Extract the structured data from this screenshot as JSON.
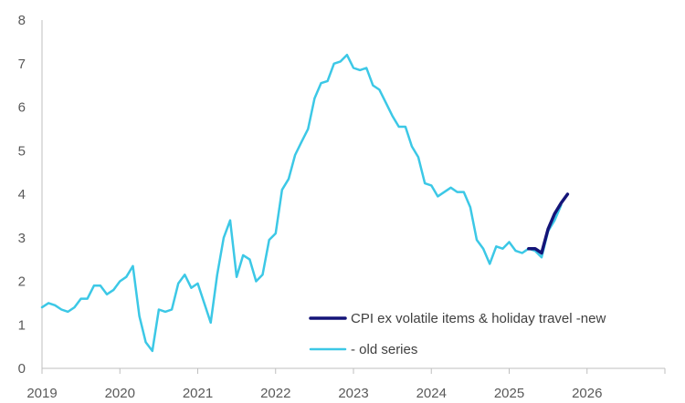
{
  "chart_data": {
    "type": "line",
    "title": "",
    "xlabel": "",
    "ylabel": "",
    "xlim": [
      2019,
      2027
    ],
    "ylim": [
      0,
      8
    ],
    "x_ticks": [
      "2019",
      "2020",
      "2021",
      "2022",
      "2023",
      "2024",
      "2025",
      "2026"
    ],
    "y_ticks": [
      "0",
      "1",
      "2",
      "3",
      "4",
      "5",
      "6",
      "7",
      "8"
    ],
    "grid": false,
    "legend_position": "bottom-center",
    "series": [
      {
        "name": "- old series",
        "color": "#3cc8e6",
        "x": [
          2019.0,
          2019.083,
          2019.167,
          2019.25,
          2019.333,
          2019.417,
          2019.5,
          2019.583,
          2019.667,
          2019.75,
          2019.833,
          2019.917,
          2020.0,
          2020.083,
          2020.167,
          2020.25,
          2020.333,
          2020.417,
          2020.5,
          2020.583,
          2020.667,
          2020.75,
          2020.833,
          2020.917,
          2021.0,
          2021.083,
          2021.167,
          2021.25,
          2021.333,
          2021.417,
          2021.5,
          2021.583,
          2021.667,
          2021.75,
          2021.833,
          2021.917,
          2022.0,
          2022.083,
          2022.167,
          2022.25,
          2022.333,
          2022.417,
          2022.5,
          2022.583,
          2022.667,
          2022.75,
          2022.833,
          2022.917,
          2023.0,
          2023.083,
          2023.167,
          2023.25,
          2023.333,
          2023.417,
          2023.5,
          2023.583,
          2023.667,
          2023.75,
          2023.833,
          2023.917,
          2024.0,
          2024.083,
          2024.167,
          2024.25,
          2024.333,
          2024.417,
          2024.5,
          2024.583,
          2024.667,
          2024.75,
          2024.833,
          2024.917,
          2025.0,
          2025.083,
          2025.167,
          2025.25,
          2025.333,
          2025.417,
          2025.5,
          2025.583,
          2025.667
        ],
        "values": [
          1.4,
          1.5,
          1.45,
          1.35,
          1.3,
          1.4,
          1.6,
          1.6,
          1.9,
          1.9,
          1.7,
          1.8,
          2.0,
          2.1,
          2.35,
          1.2,
          0.6,
          0.4,
          1.35,
          1.3,
          1.35,
          1.95,
          2.15,
          1.85,
          1.95,
          1.5,
          1.05,
          2.15,
          3.0,
          3.4,
          2.1,
          2.6,
          2.5,
          2.0,
          2.15,
          2.95,
          3.1,
          4.1,
          4.35,
          4.9,
          5.2,
          5.5,
          6.2,
          6.55,
          6.6,
          7.0,
          7.05,
          7.2,
          6.9,
          6.85,
          6.9,
          6.5,
          6.4,
          6.1,
          5.8,
          5.55,
          5.55,
          5.1,
          4.85,
          4.25,
          4.2,
          3.95,
          4.05,
          4.15,
          4.05,
          4.05,
          3.7,
          2.95,
          2.75,
          2.4,
          2.8,
          2.75,
          2.9,
          2.7,
          2.65,
          2.75,
          2.7,
          2.55,
          3.15,
          3.4,
          3.75
        ]
      },
      {
        "name": "CPI ex volatile items & holiday travel -new",
        "color": "#141478",
        "x": [
          2025.25,
          2025.333,
          2025.417,
          2025.5,
          2025.583,
          2025.667,
          2025.75
        ],
        "values": [
          2.75,
          2.75,
          2.65,
          3.2,
          3.55,
          3.8,
          4.0
        ]
      }
    ]
  }
}
